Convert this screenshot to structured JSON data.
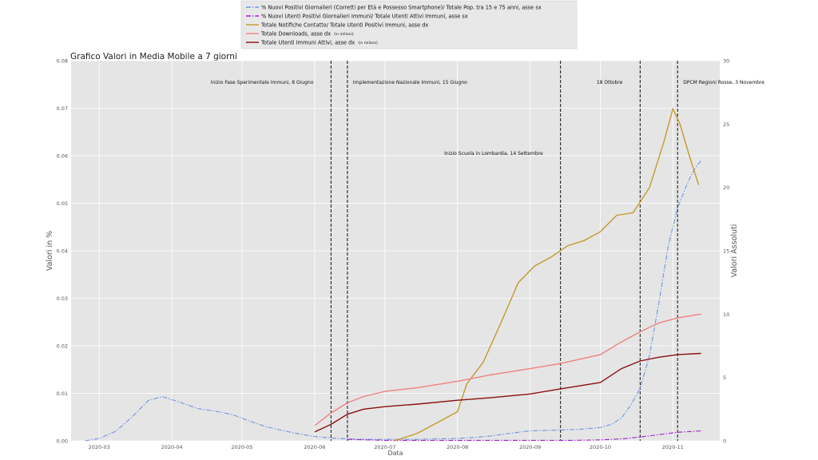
{
  "chart_data": {
    "type": "line",
    "title": "Grafico Valori in Media Mobile a 7 giorni",
    "xlabel": "Data",
    "ylabel_left": "Valori in %",
    "ylabel_right": "Valori Assoluti",
    "ylim_left": [
      0,
      0.08
    ],
    "ylim_right": [
      0,
      30
    ],
    "grid": true,
    "legend_position": "top-center",
    "x_ticks": [
      "2020-03",
      "2020-04",
      "2020-05",
      "2020-06",
      "2020-07",
      "2020-08",
      "2020-09",
      "2020-10",
      "2020-11"
    ],
    "y_ticks_left": [
      "0.00",
      "0.01",
      "0.02",
      "0.03",
      "0.04",
      "0.05",
      "0.06",
      "0.07",
      "0.08"
    ],
    "y_ticks_right": [
      "0",
      "5",
      "10",
      "15",
      "20",
      "25",
      "30"
    ],
    "legend": [
      {
        "label": "% Nuovi Positivi Giornalieri (Corretti per Età e Possesso Smartphone)/ Totale Pop. tra 15 e 75 anni, asse sx",
        "color": "#6f96de",
        "style": "dashdot"
      },
      {
        "label": "% Nuovi Utenti Positivi Giornalieri Immuni/ Totale Utenti Attivi Immuni, asse sx",
        "color": "#a020c8",
        "style": "dashdot"
      },
      {
        "label": "Totale Notifiche Contatto/ Totale Utenti Positivi Immuni, asse dx",
        "color": "#c49a2c",
        "style": "solid"
      },
      {
        "label": "Totale Downloads, asse dx",
        "suffix": "(in milioni)",
        "color": "#f08080",
        "style": "solid"
      },
      {
        "label": "Totale Utenti Immuni Attivi, asse dx",
        "suffix": "(in milioni)",
        "color": "#8b1010",
        "style": "solid"
      }
    ],
    "events": [
      {
        "date": "2020-06-08",
        "label": "Inizio Fase Sperimentale Immuni, 8 Giugno",
        "label_row": 1
      },
      {
        "date": "2020-06-15",
        "label": "Implementazione Nazionale Immuni, 15 Giugno",
        "label_row": 1
      },
      {
        "date": "2020-09-14",
        "label": "Inizio Scuola in Lombardia, 14 Settembre",
        "label_row": 2
      },
      {
        "date": "2020-10-18",
        "label": "18 Ottobre",
        "label_row": 1
      },
      {
        "date": "2020-11-03",
        "label": "DPCM Regioni Rosse, 3 Novembre",
        "label_row": 1
      }
    ],
    "series": [
      {
        "name": "% Nuovi Positivi Giornalieri (Corretti per Età e Possesso Smartphone)/ Totale Pop. tra 15 e 75 anni, asse sx",
        "axis": "left",
        "color": "#6f96de",
        "style": "dashdot",
        "x": [
          "2020-02-24",
          "2020-03-01",
          "2020-03-08",
          "2020-03-15",
          "2020-03-22",
          "2020-03-28",
          "2020-04-04",
          "2020-04-12",
          "2020-04-20",
          "2020-04-27",
          "2020-05-04",
          "2020-05-11",
          "2020-05-18",
          "2020-05-25",
          "2020-06-01",
          "2020-06-08",
          "2020-06-15",
          "2020-06-22",
          "2020-07-01",
          "2020-07-08",
          "2020-07-15",
          "2020-07-22",
          "2020-08-01",
          "2020-08-08",
          "2020-08-15",
          "2020-08-22",
          "2020-09-01",
          "2020-09-08",
          "2020-09-15",
          "2020-09-22",
          "2020-10-01",
          "2020-10-06",
          "2020-10-10",
          "2020-10-14",
          "2020-10-18",
          "2020-10-22",
          "2020-10-26",
          "2020-10-30",
          "2020-11-03",
          "2020-11-07",
          "2020-11-10",
          "2020-11-13"
        ],
        "y": [
          0.0,
          0.0005,
          0.002,
          0.005,
          0.0085,
          0.0093,
          0.0082,
          0.0068,
          0.0062,
          0.0055,
          0.0042,
          0.003,
          0.0022,
          0.0015,
          0.0009,
          0.0006,
          0.0004,
          0.0003,
          0.0003,
          0.0003,
          0.0003,
          0.0004,
          0.0005,
          0.0007,
          0.001,
          0.0015,
          0.0021,
          0.0022,
          0.0023,
          0.0024,
          0.0028,
          0.0035,
          0.0048,
          0.0075,
          0.011,
          0.018,
          0.029,
          0.041,
          0.049,
          0.054,
          0.057,
          0.059
        ]
      },
      {
        "name": "% Nuovi Utenti Positivi Giornalieri Immuni/ Totale Utenti Attivi Immuni, asse sx",
        "axis": "left",
        "color": "#a020c8",
        "style": "dashdot",
        "x": [
          "2020-06-15",
          "2020-07-01",
          "2020-08-01",
          "2020-09-01",
          "2020-09-20",
          "2020-10-01",
          "2020-10-10",
          "2020-10-18",
          "2020-10-26",
          "2020-11-03",
          "2020-11-10",
          "2020-11-13"
        ],
        "y": [
          0.0003,
          0.0001,
          0.0001,
          0.0001,
          0.0001,
          0.0002,
          0.0004,
          0.0008,
          0.0013,
          0.0018,
          0.002,
          0.0021
        ]
      },
      {
        "name": "Totale Notifiche Contatto/ Totale Utenti Positivi Immuni, asse dx",
        "axis": "right",
        "color": "#c49a2c",
        "style": "solid",
        "x": [
          "2020-07-05",
          "2020-07-15",
          "2020-07-25",
          "2020-08-01",
          "2020-08-05",
          "2020-08-12",
          "2020-08-20",
          "2020-08-27",
          "2020-09-03",
          "2020-09-10",
          "2020-09-17",
          "2020-09-24",
          "2020-10-01",
          "2020-10-08",
          "2020-10-15",
          "2020-10-22",
          "2020-10-28",
          "2020-11-01",
          "2020-11-04",
          "2020-11-08",
          "2020-11-12"
        ],
        "y": [
          0,
          0.6,
          1.6,
          2.3,
          4.5,
          6.2,
          9.5,
          12.5,
          13.8,
          14.5,
          15.4,
          15.8,
          16.5,
          17.8,
          18.0,
          20.0,
          23.5,
          26.2,
          25.0,
          22.5,
          20.2
        ]
      },
      {
        "name": "Totale Downloads, asse dx",
        "axis": "right",
        "color": "#f08080",
        "style": "solid",
        "x": [
          "2020-06-01",
          "2020-06-08",
          "2020-06-15",
          "2020-06-22",
          "2020-07-01",
          "2020-07-15",
          "2020-08-01",
          "2020-08-15",
          "2020-09-01",
          "2020-09-14",
          "2020-10-01",
          "2020-10-10",
          "2020-10-18",
          "2020-10-26",
          "2020-11-03",
          "2020-11-13"
        ],
        "y": [
          1.2,
          2.2,
          3.0,
          3.5,
          3.9,
          4.2,
          4.7,
          5.2,
          5.7,
          6.1,
          6.8,
          7.8,
          8.6,
          9.3,
          9.7,
          10.0
        ]
      },
      {
        "name": "Totale Utenti Immuni Attivi, asse dx",
        "axis": "right",
        "color": "#8b1010",
        "style": "solid",
        "x": [
          "2020-06-01",
          "2020-06-08",
          "2020-06-15",
          "2020-06-22",
          "2020-07-01",
          "2020-07-15",
          "2020-08-01",
          "2020-08-15",
          "2020-09-01",
          "2020-09-14",
          "2020-10-01",
          "2020-10-10",
          "2020-10-18",
          "2020-10-26",
          "2020-11-03",
          "2020-11-13"
        ],
        "y": [
          0.7,
          1.3,
          2.1,
          2.5,
          2.7,
          2.9,
          3.2,
          3.4,
          3.7,
          4.1,
          4.6,
          5.7,
          6.3,
          6.6,
          6.8,
          6.9
        ]
      }
    ]
  }
}
